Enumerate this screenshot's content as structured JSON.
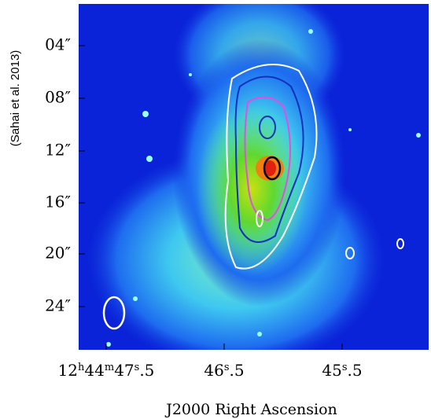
{
  "credit": "(Sahai et al. 2013)",
  "y_ticks": [
    "04″",
    "08″",
    "12″",
    "16″",
    "20″",
    "24″"
  ],
  "x_ticks": [
    [
      "12",
      "h",
      "44",
      "m",
      "47",
      "s",
      ".5"
    ],
    [
      "46",
      "s",
      ".5"
    ],
    [
      "45",
      "s",
      ".5"
    ]
  ],
  "x_label": "J2000 Right Ascension"
}
